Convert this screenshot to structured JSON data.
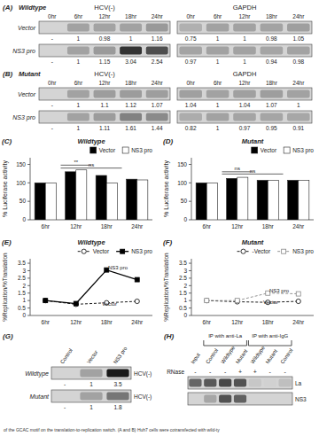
{
  "chart_data": [
    {
      "type": "blot",
      "panel_label": "(A)",
      "title": "Wildtype",
      "blots": [
        {
          "title": "HCV(-)",
          "categories": [
            "0hr",
            "6hr",
            "12hr",
            "18hr",
            "24hr"
          ],
          "rows": [
            {
              "name": "Vector",
              "values": [
                null,
                1,
                0.98,
                1,
                1.16
              ],
              "value_labels": [
                "-",
                "1",
                "0.98",
                "1",
                "1.16"
              ]
            },
            {
              "name": "NS3 pro",
              "values": [
                null,
                1,
                1.15,
                3.04,
                2.54
              ],
              "value_labels": [
                "-",
                "1",
                "1.15",
                "3.04",
                "2.54"
              ]
            }
          ]
        },
        {
          "title": "GAPDH",
          "categories": [
            "0hr",
            "6hr",
            "12hr",
            "18hr",
            "24hr"
          ],
          "rows": [
            {
              "values": [
                0.75,
                1,
                1,
                0.98,
                1.05
              ],
              "value_labels": [
                "0.75",
                "1",
                "1",
                "0.98",
                "1.05"
              ]
            },
            {
              "values": [
                0.97,
                1,
                1,
                0.94,
                0.98
              ],
              "value_labels": [
                "0.97",
                "1",
                "1",
                "0.94",
                "0.98"
              ]
            }
          ]
        }
      ]
    },
    {
      "type": "blot",
      "panel_label": "(B)",
      "title": "Mutant",
      "blots": [
        {
          "title": "HCV(-)",
          "categories": [
            "0hr",
            "6hr",
            "12hr",
            "18hr",
            "24hr"
          ],
          "rows": [
            {
              "name": "Vector",
              "values": [
                null,
                1,
                1.1,
                1.12,
                1.07
              ],
              "value_labels": [
                "-",
                "1",
                "1.1",
                "1.12",
                "1.07"
              ]
            },
            {
              "name": "NS3 pro",
              "values": [
                null,
                1,
                1.11,
                1.61,
                1.44
              ],
              "value_labels": [
                "-",
                "1",
                "1.11",
                "1.61",
                "1.44"
              ]
            }
          ]
        },
        {
          "title": "GAPDH",
          "categories": [
            "0hr",
            "6hr",
            "12hr",
            "18hr",
            "24hr"
          ],
          "rows": [
            {
              "values": [
                1.04,
                1,
                1.04,
                1.07,
                1
              ],
              "value_labels": [
                "1.04",
                "1",
                "1.04",
                "1.07",
                "1"
              ]
            },
            {
              "values": [
                0.82,
                1,
                0.97,
                0.95,
                0.91
              ],
              "value_labels": [
                "0.82",
                "1",
                "0.97",
                "0.95",
                "0.91"
              ]
            }
          ]
        }
      ]
    },
    {
      "type": "bar",
      "panel_label": "(C)",
      "title": "Wildtype",
      "categories": [
        "6hr",
        "12hr",
        "18hr",
        "24hr"
      ],
      "series": [
        {
          "name": "Vector",
          "color": "black",
          "values": [
            100,
            130,
            120,
            110
          ]
        },
        {
          "name": "NS3 pro",
          "color": "white",
          "values": [
            100,
            135,
            100,
            108
          ]
        }
      ],
      "y_label": "% Luciferase activity",
      "ylim": [
        0,
        168
      ],
      "yticks": [
        0,
        50,
        100,
        150
      ],
      "legend": "upper right",
      "annotations": [
        {
          "text": "**",
          "x": [
            0.5,
            1.5
          ],
          "y": 148
        },
        {
          "text": "ns",
          "x": [
            0.5,
            2.5
          ],
          "y": 140
        }
      ]
    },
    {
      "type": "bar",
      "panel_label": "(D)",
      "title": "Mutant",
      "categories": [
        "6hr",
        "12hr",
        "18hr",
        "24hr"
      ],
      "series": [
        {
          "name": "Vector",
          "color": "black",
          "values": [
            100,
            112,
            107,
            107
          ]
        },
        {
          "name": "NS3 pro",
          "color": "white",
          "values": [
            100,
            115,
            107,
            107
          ]
        }
      ],
      "y_label": "% Luciferase activity",
      "ylim": [
        0,
        168
      ],
      "yticks": [
        0,
        50,
        100,
        150
      ],
      "legend": "upper right",
      "annotations": [
        {
          "text": "ns",
          "x": [
            0.5,
            1.5
          ],
          "y": 130
        },
        {
          "text": "ns",
          "x": [
            0.5,
            2.5
          ],
          "y": 124
        }
      ]
    },
    {
      "type": "line",
      "panel_label": "(E)",
      "title": "Wildtype",
      "categories": [
        "6hr",
        "12hr",
        "18hr",
        "24hr"
      ],
      "series": [
        {
          "name": "Vector",
          "color": "black",
          "line_style": "dashed",
          "marker": "circle-open",
          "values": [
            1.0,
            0.75,
            0.85,
            0.95
          ]
        },
        {
          "name": "NS3 pro",
          "color": "black",
          "line_style": "solid",
          "marker": "square",
          "values": [
            1.0,
            0.8,
            3.05,
            2.4
          ]
        }
      ],
      "y_label": "%Replication/%Translation",
      "ylim": [
        0,
        3.8
      ],
      "yticks": [
        0,
        0.5,
        1,
        1.5,
        2,
        2.5,
        3,
        3.5
      ],
      "legend": "upper right",
      "annotations": [
        {
          "text": "NS3 pro",
          "x": 2.05,
          "y": 3.1
        },
        {
          "text": "Vector",
          "x": 1.85,
          "y": 0.67
        }
      ]
    },
    {
      "type": "line",
      "panel_label": "(F)",
      "title": "Mutant",
      "categories": [
        "6hr",
        "12hr",
        "18hr",
        "24hr"
      ],
      "series": [
        {
          "name": "-Vector",
          "color": "black",
          "line_style": "dashed",
          "marker": "circle-open",
          "values": [
            1.0,
            0.92,
            0.88,
            0.95
          ]
        },
        {
          "name": "NS3 pro",
          "color": "#888888",
          "line_style": "dashed",
          "marker": "square-open",
          "values": [
            1.0,
            1.0,
            1.5,
            1.45
          ]
        }
      ],
      "y_label": "%Replication/%Translation",
      "ylim": [
        0,
        3.8
      ],
      "yticks": [
        0,
        0.5,
        1,
        1.5,
        2,
        2.5,
        3,
        3.5
      ],
      "legend": "upper right",
      "annotations": [
        {
          "text": "NS3 pro",
          "x": 2.05,
          "y": 1.55
        },
        {
          "text": "Vector",
          "x": 1.85,
          "y": 0.78
        }
      ]
    },
    {
      "type": "blot",
      "panel_label": "(G)",
      "blots": [
        {
          "categories": [
            "Control",
            "Vector",
            "NS3 pro"
          ],
          "rows": [
            {
              "name": "Wildtype",
              "label": "HCV(-)",
              "values": [
                null,
                1,
                3.5
              ],
              "value_labels": [
                "-",
                "1",
                "3.5"
              ]
            },
            {
              "name": "Mutant",
              "label": "HCV(-)",
              "values": [
                null,
                1,
                1.8
              ],
              "value_labels": [
                "-",
                "1",
                "1.8"
              ]
            }
          ]
        }
      ]
    },
    {
      "type": "blot",
      "panel_label": "(H)",
      "blots": [
        {
          "categories": [
            "Input",
            "Control",
            "Wildtype",
            "Mutant",
            "Wildtype",
            "Mutant",
            "Control"
          ],
          "groups": [
            {
              "name": "IP with anti-La",
              "first": 1,
              "last": 3
            },
            {
              "name": "IP with anti-IgG",
              "first": 4,
              "last": 6
            }
          ],
          "rows": [
            {
              "name": "RNase",
              "labels": [
                "-",
                "-",
                "-",
                "+",
                "+",
                "-",
                "-"
              ]
            },
            {
              "label": "La",
              "cells": [
                0.6,
                0.65,
                0.72,
                0.68,
                0.22,
                0.18,
                0.25
              ]
            },
            {
              "label": "NS3",
              "cells": [
                null,
                0.35,
                0.68,
                0.62,
                null,
                null,
                null
              ]
            }
          ]
        }
      ]
    }
  ],
  "caption": "of the GCAC motif on the translation-to-replication switch. (A and B) Huh7 cells were cotransfected with wild-ty"
}
